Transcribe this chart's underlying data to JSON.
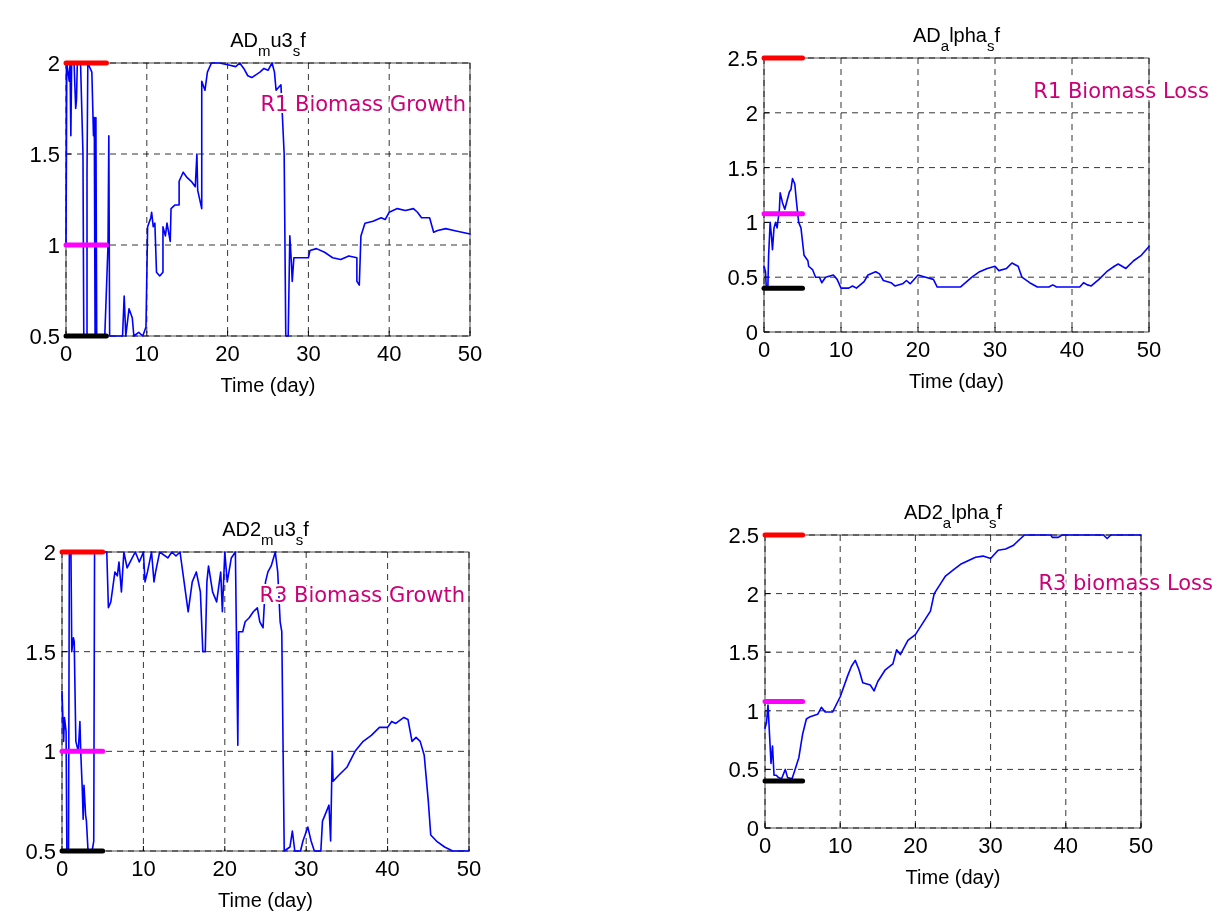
{
  "chart_data": [
    {
      "type": "line",
      "title": "AD$_{m}$u3$_{s}$f",
      "xlabel": "Time (day)",
      "xlim": [
        0,
        50
      ],
      "xticks": [
        0,
        10,
        20,
        30,
        40,
        50
      ],
      "ylim": [
        0.5,
        2
      ],
      "yticks": [
        0.5,
        1,
        1.5,
        2
      ],
      "grid": true,
      "annotations": [
        "R1 Biomass Growth"
      ],
      "series": [
        {
          "color": "#0000ff",
          "x": [
            0,
            0.1,
            0.4,
            0.5,
            0.6,
            0.7,
            1.0,
            1.2,
            1.3,
            1.4,
            1.8,
            2.1,
            2.2,
            2.6,
            2.6,
            2.7,
            3.2,
            3.4,
            3.5,
            3.6,
            3.7,
            3.8,
            4.8,
            5.2,
            5.3,
            5.4,
            6,
            7,
            7.2,
            7.4,
            7.8,
            8.2,
            8.4,
            9,
            9.5,
            9.9,
            10.1,
            10.5,
            10.6,
            10.8,
            11,
            11.2,
            11.6,
            12,
            12,
            12.3,
            12.5,
            12.9,
            13,
            13.5,
            14,
            14,
            14.5,
            15,
            15.5,
            16,
            16.2,
            16.3,
            16.8,
            16.8,
            17.2,
            17.5,
            18,
            19,
            20,
            21,
            21.5,
            22,
            22.5,
            23,
            24,
            24.5,
            25,
            25.5,
            25.8,
            26,
            26.6,
            27,
            27.2,
            27.5,
            27.7,
            27.9,
            28,
            28.2,
            29,
            30,
            30.2,
            31,
            32,
            33,
            34,
            35,
            36,
            36,
            36.3,
            36.5,
            37,
            38,
            39,
            39.5,
            40,
            41,
            42,
            43,
            43.5,
            44,
            45,
            45.5,
            46,
            47,
            48,
            49,
            50
          ],
          "values": [
            1.0,
            2.0,
            1.9,
            2.0,
            1.6,
            2.0,
            2.0,
            1.75,
            1.8,
            2.0,
            2.0,
            1.5,
            0.5,
            0.5,
            1.4,
            2.0,
            1.95,
            1.6,
            1.7,
            0.5,
            1.7,
            0.5,
            0.5,
            1.0,
            1.6,
            0.5,
            0.5,
            0.5,
            0.72,
            0.5,
            0.65,
            0.6,
            0.5,
            0.52,
            0.5,
            0.55,
            1.1,
            1.15,
            1.18,
            1.1,
            1.12,
            0.85,
            0.83,
            0.85,
            1.1,
            1.05,
            1.12,
            1.02,
            1.2,
            1.22,
            1.22,
            1.35,
            1.4,
            1.37,
            1.35,
            1.32,
            1.5,
            1.3,
            1.2,
            1.9,
            1.85,
            1.95,
            2.0,
            2.0,
            1.99,
            1.98,
            2.0,
            1.97,
            1.93,
            1.92,
            1.95,
            1.97,
            1.96,
            2.0,
            1.95,
            1.85,
            1.88,
            1.5,
            0.5,
            0.5,
            1.05,
            0.9,
            0.8,
            0.93,
            0.93,
            0.93,
            0.97,
            0.98,
            0.96,
            0.93,
            0.92,
            0.94,
            0.93,
            0.8,
            0.78,
            1.05,
            1.12,
            1.13,
            1.15,
            1.14,
            1.18,
            1.2,
            1.19,
            1.2,
            1.18,
            1.15,
            1.15,
            1.07,
            1.08,
            1.09,
            1.08,
            1.07,
            1.06
          ]
        },
        {
          "color": "#ff0000",
          "x": [
            0,
            5
          ],
          "values": [
            2,
            2
          ]
        },
        {
          "color": "#ff00ff",
          "x": [
            0,
            5
          ],
          "values": [
            1,
            1
          ]
        },
        {
          "color": "#000000",
          "x": [
            0,
            5
          ],
          "values": [
            0.5,
            0.5
          ]
        }
      ]
    },
    {
      "type": "line",
      "title": "AD$_{a}$lpha$_{s}$f",
      "xlabel": "Time (day)",
      "xlim": [
        0,
        50
      ],
      "xticks": [
        0,
        10,
        20,
        30,
        40,
        50
      ],
      "ylim": [
        0,
        2.5
      ],
      "yticks": [
        0,
        0.5,
        1,
        1.5,
        2,
        2.5
      ],
      "grid": true,
      "annotations": [
        "R1 Biomass Loss"
      ],
      "series": [
        {
          "color": "#0000ff",
          "x": [
            0,
            0.2,
            0.3,
            0.5,
            0.6,
            0.8,
            1.0,
            1.1,
            1.3,
            1.5,
            1.7,
            2.0,
            2.1,
            2.4,
            2.7,
            3.0,
            3.3,
            3.5,
            3.7,
            4,
            4.2,
            4.5,
            4.8,
            5.2,
            5.7,
            5.8,
            6.3,
            6.7,
            7.2,
            7.5,
            8,
            9,
            9.5,
            10,
            11,
            11.5,
            12,
            13,
            13.5,
            14.5,
            15,
            15.5,
            16.5,
            17,
            18,
            18.5,
            19,
            20,
            21,
            22,
            22.5,
            25.5,
            27,
            28,
            29,
            30,
            30.5,
            31.5,
            32.2,
            33,
            33.5,
            34.5,
            35.5,
            37,
            37.5,
            38,
            41,
            41.5,
            42,
            42.5,
            43.5,
            44.5,
            45.5,
            46,
            46.5,
            47,
            48,
            49,
            50
          ],
          "values": [
            0.6,
            0.55,
            0.4,
            0.4,
            0.7,
            1.0,
            0.85,
            0.75,
            0.95,
            1.0,
            0.95,
            1.12,
            1.27,
            1.18,
            1.12,
            1.2,
            1.28,
            1.3,
            1.4,
            1.35,
            1.2,
            1.0,
            0.95,
            0.7,
            0.65,
            0.6,
            0.57,
            0.5,
            0.5,
            0.45,
            0.5,
            0.52,
            0.48,
            0.4,
            0.4,
            0.42,
            0.4,
            0.46,
            0.52,
            0.55,
            0.53,
            0.47,
            0.45,
            0.42,
            0.44,
            0.47,
            0.44,
            0.52,
            0.5,
            0.48,
            0.41,
            0.41,
            0.5,
            0.55,
            0.58,
            0.6,
            0.56,
            0.58,
            0.63,
            0.6,
            0.5,
            0.45,
            0.41,
            0.41,
            0.43,
            0.41,
            0.41,
            0.45,
            0.43,
            0.42,
            0.48,
            0.55,
            0.6,
            0.62,
            0.6,
            0.58,
            0.65,
            0.7,
            0.78
          ]
        },
        {
          "color": "#ff0000",
          "x": [
            0,
            5
          ],
          "values": [
            2.5,
            2.5
          ]
        },
        {
          "color": "#ff00ff",
          "x": [
            0,
            5
          ],
          "values": [
            1.08,
            1.08
          ]
        },
        {
          "color": "#000000",
          "x": [
            0,
            5
          ],
          "values": [
            0.4,
            0.4
          ]
        }
      ]
    },
    {
      "type": "line",
      "title": "AD2$_{m}$u3$_{s}$f",
      "xlabel": "Time (day)",
      "xlim": [
        0,
        50
      ],
      "xticks": [
        0,
        10,
        20,
        30,
        40,
        50
      ],
      "ylim": [
        0.5,
        2
      ],
      "yticks": [
        0.5,
        1,
        1.5,
        2
      ],
      "grid": true,
      "annotations": [
        "R3 Biomass Growth"
      ],
      "series": [
        {
          "color": "#0000ff",
          "x": [
            0,
            0.2,
            0.3,
            0.5,
            0.6,
            0.8,
            0.9,
            1.1,
            1.2,
            1.4,
            1.5,
            1.7,
            2.0,
            2.2,
            2.3,
            2.5,
            2.6,
            2.7,
            2.9,
            3.0,
            3.2,
            3.7,
            3.9,
            4.0,
            5.5,
            5.7,
            6.0,
            6.5,
            6.8,
            7,
            7.3,
            7.6,
            8,
            8.5,
            9,
            9.5,
            10,
            10.2,
            10.5,
            11,
            11.3,
            11.5,
            12,
            13,
            13.5,
            14,
            14.5,
            15,
            15.5,
            16,
            16.5,
            17,
            17.3,
            17.6,
            17.8,
            18,
            18.5,
            19,
            19.5,
            19.7,
            20,
            20.3,
            20.8,
            21.3,
            21.6,
            21.7,
            22.2,
            22.5,
            23,
            23.5,
            24,
            24.3,
            24.7,
            25,
            25.3,
            25.7,
            26.2,
            26.5,
            26.8,
            27,
            27.3,
            28,
            28.3,
            28.6,
            29.3,
            29.6,
            30.2,
            30.6,
            31,
            31.8,
            32,
            32.8,
            33.0,
            33.2,
            33.3,
            34,
            35,
            36,
            37,
            38,
            39,
            40,
            40.5,
            41,
            42,
            42.5,
            43,
            43.5,
            44,
            44.5,
            45,
            45.3,
            46,
            47,
            48,
            50
          ],
          "values": [
            1.3,
            1.05,
            1.17,
            1.1,
            0.5,
            0.5,
            2.0,
            2.0,
            1.5,
            1.57,
            1.55,
            1.05,
            1.0,
            1.15,
            1.0,
            0.8,
            0.66,
            0.83,
            0.68,
            0.65,
            0.5,
            0.5,
            0.55,
            2.0,
            2.0,
            1.72,
            1.75,
            1.9,
            1.88,
            1.95,
            1.8,
            2.0,
            1.92,
            1.96,
            2.0,
            1.95,
            2.0,
            1.85,
            1.9,
            2.0,
            1.85,
            1.9,
            2.0,
            1.97,
            2.0,
            1.98,
            2.0,
            1.85,
            1.7,
            1.85,
            1.9,
            1.8,
            1.5,
            1.5,
            1.85,
            1.93,
            1.8,
            1.75,
            1.9,
            1.7,
            2.0,
            1.85,
            1.97,
            2.0,
            1.03,
            1.6,
            1.6,
            1.65,
            1.67,
            1.7,
            1.72,
            1.65,
            1.62,
            1.85,
            1.9,
            1.93,
            2.0,
            1.9,
            1.65,
            1.6,
            0.5,
            0.52,
            0.6,
            0.5,
            0.5,
            0.55,
            0.62,
            0.55,
            0.5,
            0.5,
            0.65,
            0.73,
            0.55,
            1.0,
            0.85,
            0.88,
            0.92,
            1.0,
            1.05,
            1.08,
            1.12,
            1.12,
            1.15,
            1.14,
            1.17,
            1.16,
            1.05,
            1.07,
            1.05,
            0.98,
            0.75,
            0.58,
            0.55,
            0.52,
            0.5,
            0.5
          ]
        },
        {
          "color": "#ff0000",
          "x": [
            0,
            5
          ],
          "values": [
            2,
            2
          ]
        },
        {
          "color": "#ff00ff",
          "x": [
            0,
            5
          ],
          "values": [
            1,
            1
          ]
        },
        {
          "color": "#000000",
          "x": [
            0,
            5
          ],
          "values": [
            0.5,
            0.5
          ]
        }
      ]
    },
    {
      "type": "line",
      "title": "AD2$_{a}$lpha$_{s}$f",
      "xlabel": "Time (day)",
      "xlim": [
        0,
        50
      ],
      "xticks": [
        0,
        10,
        20,
        30,
        40,
        50
      ],
      "ylim": [
        0,
        2.5
      ],
      "yticks": [
        0,
        0.5,
        1,
        1.5,
        2,
        2.5
      ],
      "grid": true,
      "annotations": [
        "R3 biomass Loss"
      ],
      "series": [
        {
          "color": "#0000ff",
          "x": [
            0,
            0.2,
            0.4,
            0.6,
            0.8,
            1.0,
            1.2,
            1.5,
            1.8,
            2.2,
            2.7,
            3.0,
            3.6,
            4,
            4.5,
            5,
            5.5,
            6,
            7,
            7.5,
            8,
            9,
            10,
            11,
            11.5,
            12,
            12.5,
            13,
            14,
            14.5,
            15,
            16,
            17,
            17.5,
            18,
            19,
            20,
            21,
            22,
            22.5,
            23.5,
            24,
            25,
            26,
            27,
            28,
            29,
            30,
            31,
            32,
            33,
            34,
            34.5,
            38,
            38.2,
            39,
            39.5,
            45,
            45.5,
            46,
            50
          ],
          "values": [
            0.85,
            0.9,
            1.05,
            0.8,
            0.55,
            0.7,
            0.45,
            0.45,
            0.43,
            0.42,
            0.5,
            0.43,
            0.42,
            0.5,
            0.6,
            0.8,
            0.93,
            0.95,
            0.97,
            1.03,
            0.99,
            0.99,
            1.12,
            1.3,
            1.38,
            1.43,
            1.35,
            1.24,
            1.22,
            1.17,
            1.25,
            1.35,
            1.4,
            1.52,
            1.48,
            1.6,
            1.65,
            1.75,
            1.85,
            2.0,
            2.1,
            2.15,
            2.2,
            2.25,
            2.28,
            2.31,
            2.32,
            2.3,
            2.37,
            2.38,
            2.41,
            2.47,
            2.5,
            2.5,
            2.48,
            2.48,
            2.5,
            2.5,
            2.47,
            2.5,
            2.5
          ]
        },
        {
          "color": "#ff0000",
          "x": [
            0,
            5
          ],
          "values": [
            2.5,
            2.5
          ]
        },
        {
          "color": "#ff00ff",
          "x": [
            0,
            5
          ],
          "values": [
            1.08,
            1.08
          ]
        },
        {
          "color": "#000000",
          "x": [
            0,
            5
          ],
          "values": [
            0.4,
            0.4
          ]
        }
      ]
    }
  ]
}
